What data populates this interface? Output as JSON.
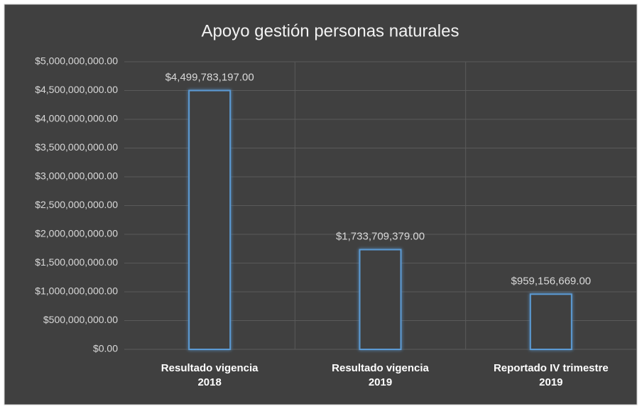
{
  "chart_data": {
    "type": "bar",
    "title": "Apoyo gestión personas naturales",
    "categories": [
      "Resultado vigencia 2018",
      "Resultado vigencia 2019",
      "Reportado IV trimestre 2019"
    ],
    "values": [
      4499783197,
      1733709379,
      959156669
    ],
    "value_labels": [
      "$4,499,783,197.00",
      "$1,733,709,379.00",
      "$959,156,669.00"
    ],
    "color": "#5b9bd5",
    "ylim": [
      0,
      5000000000
    ],
    "yticks": [
      {
        "value": 0,
        "label": "$0.00"
      },
      {
        "value": 500000000,
        "label": "$500,000,000.00"
      },
      {
        "value": 1000000000,
        "label": "$1,000,000,000.00"
      },
      {
        "value": 1500000000,
        "label": "$1,500,000,000.00"
      },
      {
        "value": 2000000000,
        "label": "$2,000,000,000.00"
      },
      {
        "value": 2500000000,
        "label": "$2,500,000,000.00"
      },
      {
        "value": 3000000000,
        "label": "$3,000,000,000.00"
      },
      {
        "value": 3500000000,
        "label": "$3,500,000,000.00"
      },
      {
        "value": 4000000000,
        "label": "$4,000,000,000.00"
      },
      {
        "value": 4500000000,
        "label": "$4,500,000,000.00"
      },
      {
        "value": 5000000000,
        "label": "$5,000,000,000.00"
      }
    ],
    "grid": true
  }
}
